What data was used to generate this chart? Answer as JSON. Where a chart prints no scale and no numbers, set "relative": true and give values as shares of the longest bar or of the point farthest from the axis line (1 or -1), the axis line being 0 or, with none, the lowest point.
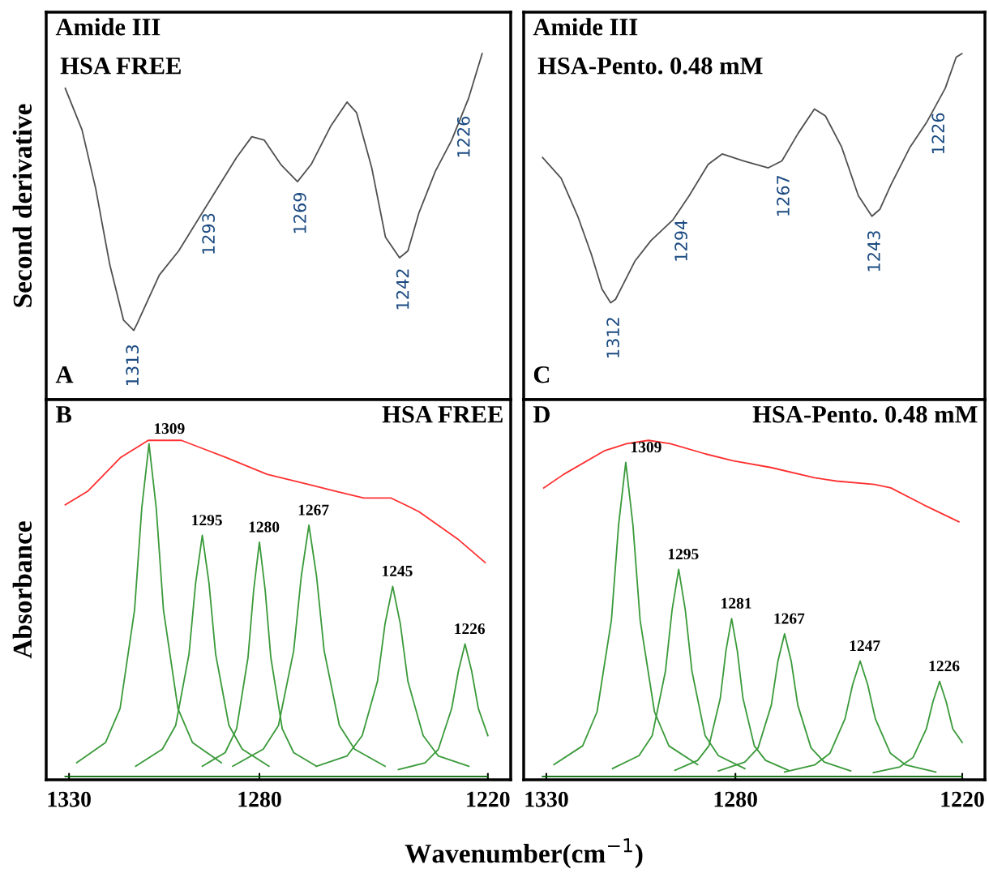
{
  "chart_data": [
    {
      "type": "line",
      "relative": true,
      "title": "Amide III",
      "subtitle": "HSA FREE",
      "ylabel": "Second derivative",
      "xlim": [
        1336,
        1214
      ],
      "tick_labels": false,
      "legend": false,
      "grid": false,
      "marker": "none",
      "line_style": "solid",
      "series": [
        {
          "color": "#505050",
          "x": [
            1331,
            1326.6,
            1323,
            1319.3,
            1315.7,
            1313,
            1312.1,
            1306.3,
            1301.2,
            1291.1,
            1286,
            1282,
            1278.7,
            1274.4,
            1270,
            1266.4,
            1261.3,
            1257,
            1254.5,
            1250.5,
            1246.9,
            1243.2,
            1241,
            1238.1,
            1233.8,
            1229.5,
            1225.1,
            1221.5
          ],
          "values": [
            0.9,
            0.78,
            0.61,
            0.39,
            0.23,
            0.2,
            0.22,
            0.36,
            0.43,
            0.61,
            0.7,
            0.76,
            0.75,
            0.68,
            0.63,
            0.68,
            0.79,
            0.86,
            0.83,
            0.67,
            0.47,
            0.41,
            0.43,
            0.54,
            0.66,
            0.75,
            0.87,
            1.0
          ]
        }
      ],
      "annotations": [
        "A",
        {
          "text": "1313",
          "x": 1313,
          "y": 0.2
        },
        {
          "text": "1293",
          "x": 1293,
          "y": 0.58
        },
        {
          "text": "1269",
          "x": 1269,
          "y": 0.64
        },
        {
          "text": "1242",
          "x": 1242,
          "y": 0.42
        },
        {
          "text": "1226",
          "x": 1226,
          "y": 0.86
        }
      ]
    },
    {
      "type": "line",
      "relative": true,
      "title": "Amide III",
      "subtitle": "HSA-Pento. 0.48 mM",
      "xlim": [
        1336,
        1214
      ],
      "tick_labels": false,
      "legend": false,
      "grid": false,
      "marker": "none",
      "line_style": "solid",
      "series": [
        {
          "color": "#505050",
          "x": [
            1331,
            1326.1,
            1321.7,
            1318.1,
            1315.3,
            1313,
            1311.7,
            1306.6,
            1302.3,
            1296.5,
            1292.2,
            1287.2,
            1283.5,
            1277.8,
            1271.3,
            1267.7,
            1263.4,
            1259.1,
            1256.2,
            1251.9,
            1247.5,
            1243.9,
            1241.8,
            1238.9,
            1233.8,
            1229.5,
            1224.5,
            1221.6,
            1220.1
          ],
          "values": [
            0.7,
            0.64,
            0.53,
            0.42,
            0.32,
            0.28,
            0.29,
            0.4,
            0.46,
            0.52,
            0.59,
            0.68,
            0.71,
            0.69,
            0.67,
            0.69,
            0.77,
            0.84,
            0.82,
            0.73,
            0.59,
            0.53,
            0.55,
            0.62,
            0.73,
            0.8,
            0.9,
            0.99,
            1.0
          ]
        }
      ],
      "annotations": [
        "C",
        {
          "text": "1312",
          "x": 1312,
          "y": 0.28
        },
        {
          "text": "1294",
          "x": 1294,
          "y": 0.56
        },
        {
          "text": "1267",
          "x": 1267,
          "y": 0.69
        },
        {
          "text": "1243",
          "x": 1243,
          "y": 0.53
        },
        {
          "text": "1226",
          "x": 1226,
          "y": 0.87
        }
      ]
    },
    {
      "type": "line",
      "relative": true,
      "subtitle": "HSA FREE",
      "ylabel": "Absorbance",
      "xlabel": "Wavenumber(cm$^{−1}$)",
      "xlim": [
        1336,
        1214
      ],
      "xticks": [
        1330,
        1280,
        1220
      ],
      "tick_labels": "x",
      "legend": false,
      "grid": false,
      "marker": "none",
      "line_style": "solid",
      "series": [
        {
          "color": "#ff3030",
          "x": [
            1331,
            1325.1,
            1316.4,
            1309.2,
            1300.5,
            1288.9,
            1278,
            1267.1,
            1259.9,
            1252.6,
            1245.4,
            1238.1,
            1228,
            1220.7
          ],
          "values": [
            0.81,
            0.85,
            0.95,
            1.0,
            1.0,
            0.95,
            0.9,
            0.87,
            0.85,
            0.83,
            0.83,
            0.79,
            0.71,
            0.64
          ]
        },
        {
          "color": "#3a9a3a",
          "x": [
            1328,
            1320.4,
            1316.6,
            1312.8,
            1310.9,
            1309,
            1307.1,
            1305.2,
            1301.4,
            1297.6,
            1290
          ],
          "values": [
            0.05,
            0.11,
            0.21,
            0.5,
            0.8,
            0.99,
            0.8,
            0.5,
            0.21,
            0.11,
            0.05
          ]
        },
        {
          "color": "#3a9a3a",
          "x": [
            1312.5,
            1305.5,
            1302,
            1298.5,
            1296.75,
            1295,
            1293.25,
            1291.5,
            1288,
            1284.5,
            1277.5
          ],
          "values": [
            0.04,
            0.09,
            0.16,
            0.37,
            0.58,
            0.72,
            0.58,
            0.37,
            0.16,
            0.09,
            0.04
          ]
        },
        {
          "color": "#3a9a3a",
          "x": [
            1295,
            1289,
            1286,
            1283,
            1281.5,
            1280,
            1278.5,
            1277,
            1274,
            1271,
            1265
          ],
          "values": [
            0.04,
            0.08,
            0.15,
            0.36,
            0.56,
            0.7,
            0.56,
            0.36,
            0.15,
            0.08,
            0.04
          ]
        },
        {
          "color": "#3a9a3a",
          "x": [
            1287,
            1279,
            1275,
            1271,
            1269,
            1267,
            1265,
            1263,
            1259,
            1255,
            1247
          ],
          "values": [
            0.04,
            0.09,
            0.16,
            0.38,
            0.6,
            0.75,
            0.6,
            0.38,
            0.16,
            0.09,
            0.04
          ]
        },
        {
          "color": "#3a9a3a",
          "x": [
            1265,
            1257,
            1253,
            1249,
            1247,
            1245,
            1243,
            1241,
            1237,
            1233,
            1225
          ],
          "values": [
            0.04,
            0.07,
            0.13,
            0.29,
            0.46,
            0.57,
            0.46,
            0.29,
            0.13,
            0.07,
            0.04
          ]
        },
        {
          "color": "#3a9a3a",
          "x": [
            1243.5,
            1236.5,
            1233,
            1229.5,
            1227.75,
            1226,
            1224.25,
            1222.5,
            1220
          ],
          "values": [
            0.03,
            0.05,
            0.09,
            0.21,
            0.32,
            0.4,
            0.32,
            0.21,
            0.13
          ]
        },
        {
          "color": "#006400",
          "x": [
            1331,
            1220
          ],
          "values": [
            0.01,
            0.01
          ]
        }
      ],
      "annotations": [
        "B",
        {
          "text": "1309",
          "x": 1309,
          "y": 0.99
        },
        {
          "text": "1295",
          "x": 1295,
          "y": 0.72
        },
        {
          "text": "1280",
          "x": 1280,
          "y": 0.7
        },
        {
          "text": "1267",
          "x": 1267,
          "y": 0.75
        },
        {
          "text": "1245",
          "x": 1245,
          "y": 0.57
        },
        {
          "text": "1226",
          "x": 1226,
          "y": 0.4
        }
      ]
    },
    {
      "type": "line",
      "relative": true,
      "subtitle": "HSA-Pento. 0.48 mM",
      "xlim": [
        1336,
        1214
      ],
      "xticks": [
        1330,
        1280,
        1220
      ],
      "tick_labels": "x",
      "legend": false,
      "grid": false,
      "marker": "none",
      "line_style": "solid",
      "series": [
        {
          "color": "#ff3030",
          "x": [
            1330.7,
            1325.4,
            1314.5,
            1308.8,
            1303,
            1297.2,
            1287.9,
            1280.7,
            1270.6,
            1259.1,
            1253.3,
            1243.2,
            1238.9,
            1230.2,
            1220.9
          ],
          "values": [
            0.86,
            0.9,
            0.97,
            0.99,
            1.0,
            0.99,
            0.96,
            0.94,
            0.92,
            0.89,
            0.88,
            0.87,
            0.86,
            0.81,
            0.76
          ]
        },
        {
          "color": "#3a9a3a",
          "x": [
            1328,
            1320.4,
            1316.6,
            1312.8,
            1310.9,
            1309,
            1307.1,
            1305.2,
            1301.4,
            1297.6,
            1290
          ],
          "values": [
            0.045,
            0.1,
            0.2,
            0.47,
            0.75,
            0.935,
            0.75,
            0.47,
            0.2,
            0.1,
            0.045
          ]
        },
        {
          "color": "#3a9a3a",
          "x": [
            1312.5,
            1305.5,
            1302,
            1298.5,
            1296.75,
            1295,
            1293.25,
            1291.5,
            1288,
            1284.5,
            1277.5
          ],
          "values": [
            0.033,
            0.071,
            0.13,
            0.32,
            0.5,
            0.62,
            0.5,
            0.32,
            0.13,
            0.071,
            0.033
          ]
        },
        {
          "color": "#3a9a3a",
          "x": [
            1296,
            1290,
            1287,
            1284,
            1282.5,
            1281,
            1279.5,
            1278,
            1275,
            1272,
            1266
          ],
          "values": [
            0.028,
            0.057,
            0.1,
            0.24,
            0.38,
            0.475,
            0.38,
            0.24,
            0.1,
            0.057,
            0.028
          ]
        },
        {
          "color": "#3a9a3a",
          "x": [
            1284.5,
            1277.5,
            1274,
            1270.5,
            1268.75,
            1267,
            1265.25,
            1263.5,
            1260,
            1256.5,
            1249.5
          ],
          "values": [
            0.026,
            0.052,
            0.094,
            0.22,
            0.35,
            0.43,
            0.35,
            0.22,
            0.094,
            0.052,
            0.026
          ]
        },
        {
          "color": "#3a9a3a",
          "x": [
            1267,
            1259,
            1255,
            1251,
            1249,
            1247,
            1245,
            1243,
            1239,
            1235,
            1227
          ],
          "values": [
            0.023,
            0.044,
            0.078,
            0.18,
            0.28,
            0.35,
            0.28,
            0.18,
            0.078,
            0.044,
            0.023
          ]
        },
        {
          "color": "#3a9a3a",
          "x": [
            1243.5,
            1236.5,
            1233,
            1229.5,
            1227.75,
            1226,
            1224.25,
            1222.5,
            1220
          ],
          "values": [
            0.021,
            0.038,
            0.066,
            0.15,
            0.23,
            0.29,
            0.23,
            0.15,
            0.11
          ]
        },
        {
          "color": "#006400",
          "x": [
            1331,
            1220
          ],
          "values": [
            0.01,
            0.01
          ]
        }
      ],
      "annotations": [
        "D",
        {
          "text": "1309",
          "x": 1309,
          "y": 0.935
        },
        {
          "text": "1295",
          "x": 1295,
          "y": 0.62
        },
        {
          "text": "1281",
          "x": 1281,
          "y": 0.475
        },
        {
          "text": "1267",
          "x": 1267,
          "y": 0.43
        },
        {
          "text": "1247",
          "x": 1247,
          "y": 0.35
        },
        {
          "text": "1226",
          "x": 1226,
          "y": 0.29
        }
      ]
    }
  ]
}
